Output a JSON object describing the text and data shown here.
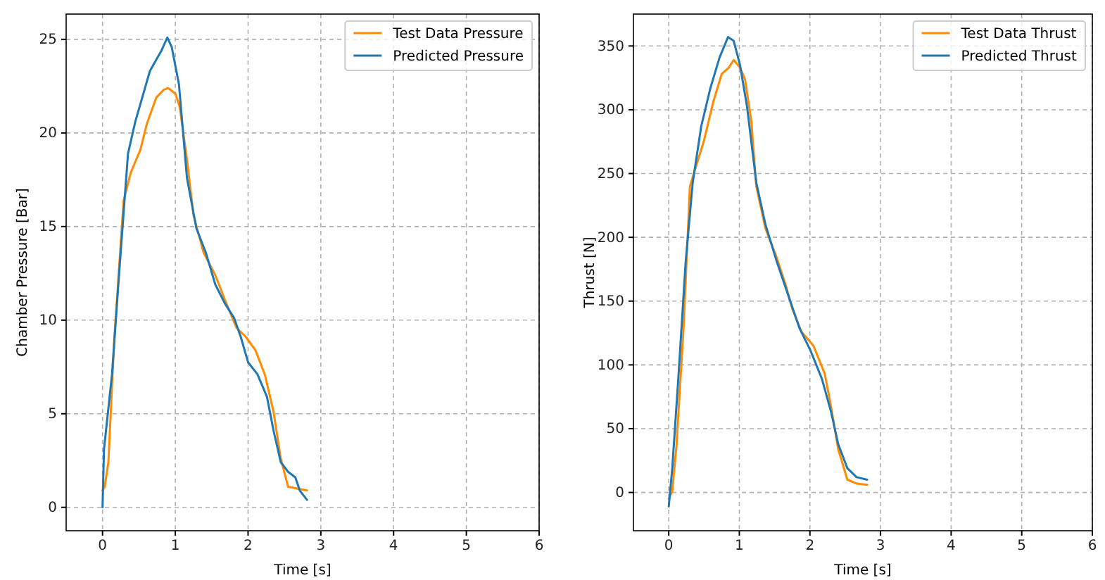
{
  "chart_data": [
    {
      "type": "line",
      "xlabel": "Time [s]",
      "ylabel": "Chamber Pressure [Bar]",
      "xlim": [
        -0.5,
        6
      ],
      "ylim": [
        -1.25,
        26.35
      ],
      "xticks": [
        0,
        1,
        2,
        3,
        4,
        5,
        6
      ],
      "yticks": [
        0,
        5,
        10,
        15,
        20,
        25
      ],
      "grid": true,
      "legend": "top right",
      "series": [
        {
          "name": "Test Data Pressure",
          "color": "#ff8c00",
          "x": [
            0,
            0.03,
            0.08,
            0.16,
            0.29,
            0.39,
            0.52,
            0.61,
            0.74,
            0.84,
            0.9,
            1.0,
            1.06,
            1.16,
            1.25,
            1.39,
            1.55,
            1.68,
            1.84,
            1.97,
            2.1,
            2.23,
            2.35,
            2.45,
            2.55,
            2.68,
            2.81
          ],
          "values": [
            0.9,
            1.1,
            2.4,
            8.9,
            16.4,
            17.9,
            19.1,
            20.5,
            21.9,
            22.3,
            22.4,
            22.1,
            21.4,
            18.6,
            15.6,
            13.6,
            12.4,
            11.1,
            9.6,
            9.1,
            8.4,
            7.1,
            5.1,
            2.6,
            1.1,
            1.0,
            0.9
          ]
        },
        {
          "name": "Predicted Pressure",
          "color": "#1f77b4",
          "x": [
            0,
            0.02,
            0.13,
            0.23,
            0.35,
            0.45,
            0.65,
            0.81,
            0.89,
            0.95,
            1.05,
            1.16,
            1.29,
            1.42,
            1.55,
            1.68,
            1.81,
            1.9,
            2.0,
            2.13,
            2.26,
            2.35,
            2.45,
            2.55,
            2.65,
            2.71,
            2.81
          ],
          "values": [
            0,
            3.1,
            7.1,
            12.6,
            18.9,
            20.6,
            23.3,
            24.4,
            25.1,
            24.6,
            22.6,
            17.6,
            14.9,
            13.6,
            11.9,
            10.9,
            10.1,
            9.1,
            7.75,
            7.1,
            5.9,
            4.1,
            2.4,
            1.9,
            1.6,
            0.9,
            0.4
          ]
        }
      ]
    },
    {
      "type": "line",
      "xlabel": "Time [s]",
      "ylabel": "Thrust [N]",
      "xlim": [
        -0.5,
        6
      ],
      "ylim": [
        -30,
        375
      ],
      "xticks": [
        0,
        1,
        2,
        3,
        4,
        5,
        6
      ],
      "yticks": [
        0,
        50,
        100,
        150,
        200,
        250,
        300,
        350
      ],
      "grid": true,
      "legend": "top right",
      "series": [
        {
          "name": "Test Data Thrust",
          "color": "#ff8c00",
          "x": [
            0,
            0.05,
            0.11,
            0.21,
            0.3,
            0.4,
            0.5,
            0.63,
            0.75,
            0.85,
            0.92,
            1.01,
            1.08,
            1.17,
            1.24,
            1.37,
            1.53,
            1.66,
            1.75,
            1.88,
            2.05,
            2.21,
            2.3,
            2.4,
            2.53,
            2.66,
            2.81
          ],
          "values": [
            -5,
            1,
            37,
            129,
            240,
            258,
            276,
            306,
            328,
            333,
            339,
            333,
            324,
            291,
            240,
            207,
            184,
            162,
            144,
            126,
            115,
            93,
            67,
            34,
            10,
            7,
            6
          ]
        },
        {
          "name": "Predicted Thrust",
          "color": "#1f77b4",
          "x": [
            0,
            0.05,
            0.14,
            0.24,
            0.34,
            0.46,
            0.59,
            0.72,
            0.84,
            0.92,
            1.01,
            1.11,
            1.24,
            1.37,
            1.53,
            1.69,
            1.85,
            2.01,
            2.17,
            2.3,
            2.4,
            2.53,
            2.66,
            2.81
          ],
          "values": [
            -11,
            19,
            93,
            181,
            243,
            287,
            317,
            341,
            357,
            354,
            335,
            302,
            243,
            210,
            181,
            155,
            129,
            111,
            89,
            63,
            38,
            19,
            12,
            10
          ]
        }
      ]
    }
  ]
}
